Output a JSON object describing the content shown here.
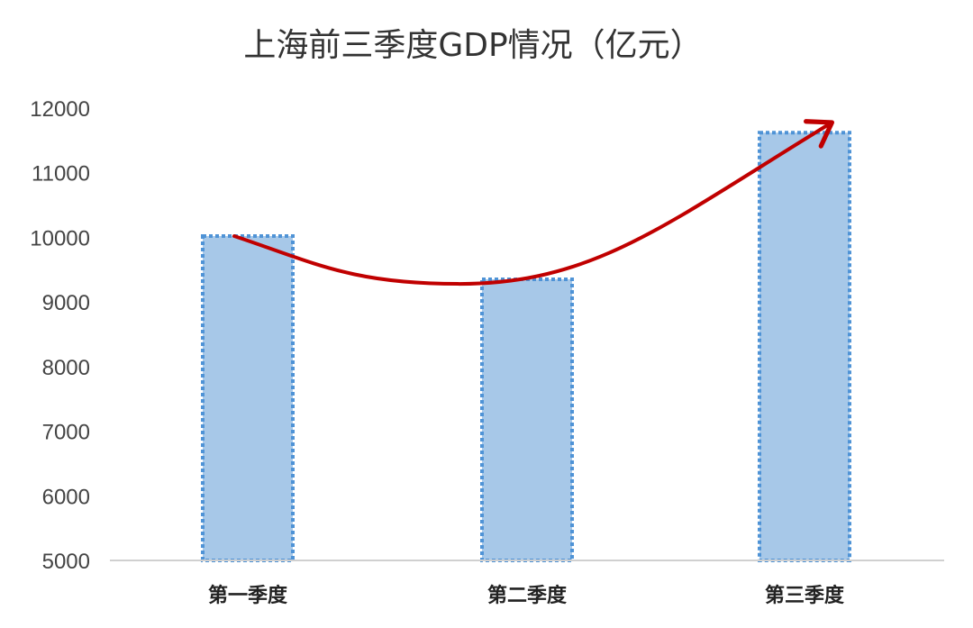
{
  "chart_data": {
    "type": "bar",
    "title": "上海前三季度GDP情况（亿元）",
    "xlabel": "",
    "ylabel": "",
    "categories": [
      "第一季度",
      "第二季度",
      "第三季度"
    ],
    "values": [
      10020,
      9350,
      11620
    ],
    "ylim": [
      5000,
      12000
    ],
    "yticks": [
      5000,
      6000,
      7000,
      8000,
      9000,
      10000,
      11000,
      12000
    ],
    "grid": false,
    "legend": "none",
    "bar_fill": "#a7c8e8",
    "bar_border": "#4f93d6",
    "trend_arrow_color": "#c00000",
    "axis_color": "#d0d0d0"
  }
}
